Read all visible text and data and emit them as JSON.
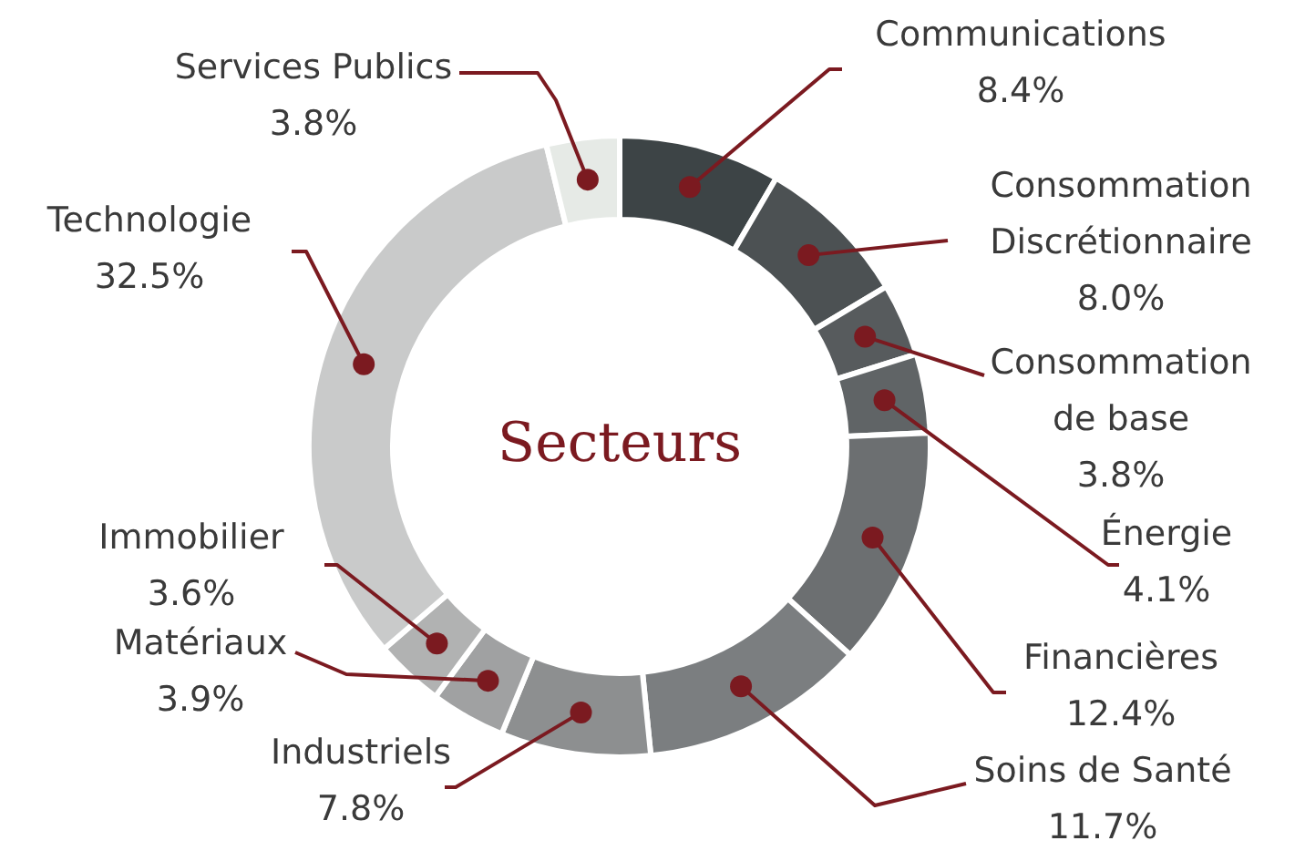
{
  "chart_data": {
    "type": "donut",
    "title": "Secteurs",
    "legend": false,
    "categories": [
      "Communications",
      "Consommation Discrétionnaire",
      "Consommation de base",
      "Énergie",
      "Financières",
      "Soins de Santé",
      "Industriels",
      "Matériaux",
      "Immobilier",
      "Technologie",
      "Services Publics"
    ],
    "values": [
      8.4,
      8.0,
      3.8,
      4.1,
      12.4,
      11.7,
      7.8,
      3.9,
      3.6,
      32.5,
      3.8
    ],
    "value_labels": [
      "8.4%",
      "8.0%",
      "3.8%",
      "4.1%",
      "12.4%",
      "11.7%",
      "7.8%",
      "3.9%",
      "3.6%",
      "32.5%",
      "3.8%"
    ],
    "colors": [
      "#3d4446",
      "#4c5153",
      "#575b5d",
      "#606466",
      "#6c6f71",
      "#7b7e80",
      "#8d8f90",
      "#a0a1a2",
      "#b1b2b2",
      "#c9caca",
      "#e6eae6"
    ]
  }
}
